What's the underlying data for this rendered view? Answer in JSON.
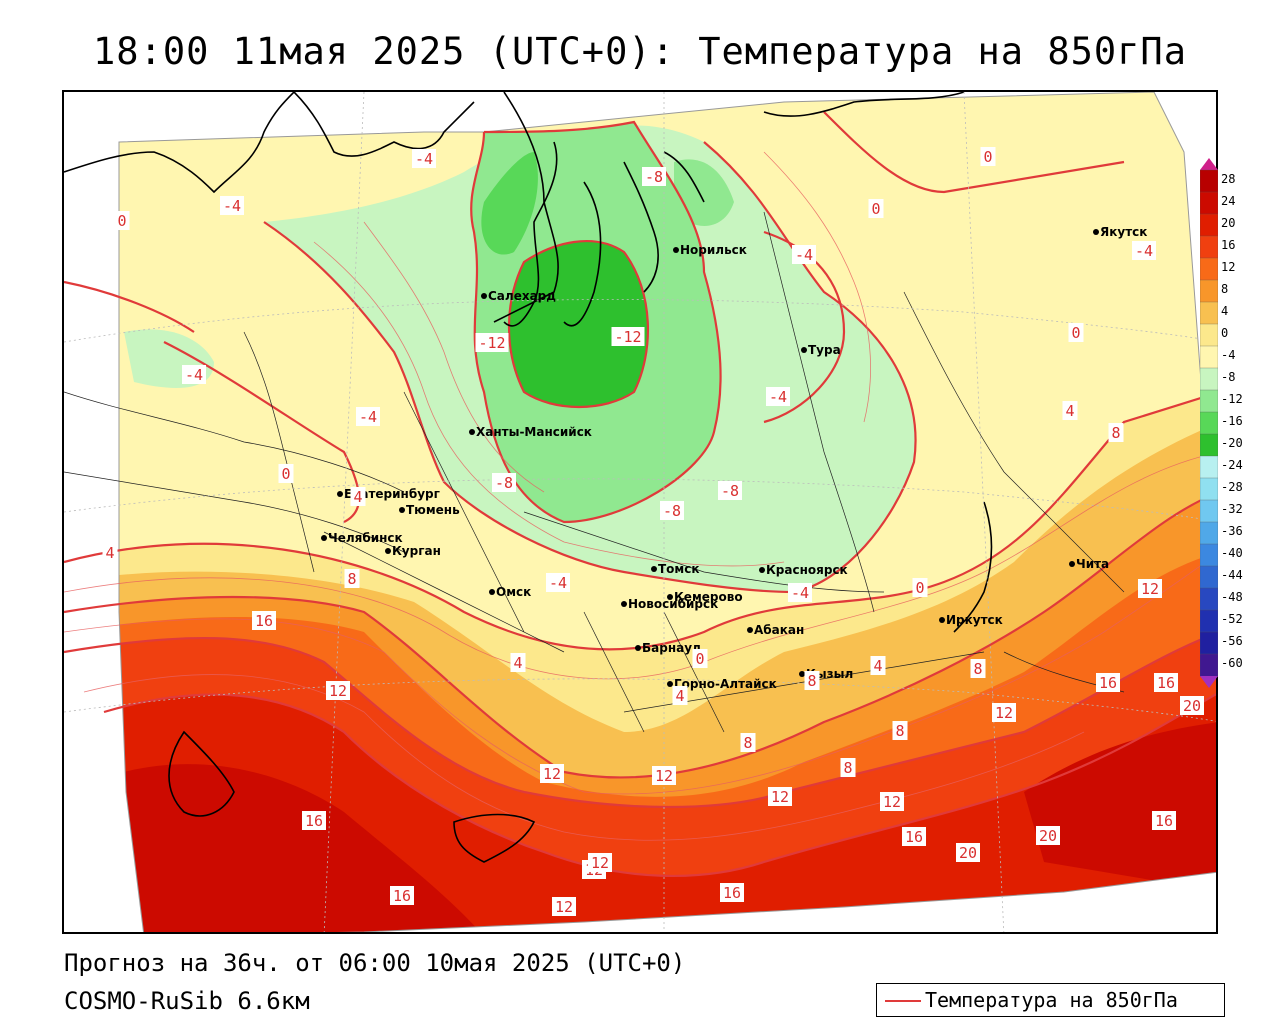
{
  "header": {
    "title": "18:00 11мая 2025 (UTC+0): Температура на 850гПа"
  },
  "footer": {
    "forecast": "Прогноз на 36ч. от 06:00 10мая 2025 (UTC+0)",
    "model": "COSMO-RuSib 6.6км"
  },
  "legend": {
    "label": "Температура на 850гПа",
    "line_color": "#e03a3a"
  },
  "colorbar": {
    "ticks": [
      "28",
      "24",
      "20",
      "16",
      "12",
      "8",
      "4",
      "0",
      "-4",
      "-8",
      "-12",
      "-16",
      "-20",
      "-24",
      "-28",
      "-32",
      "-36",
      "-40",
      "-44",
      "-48",
      "-52",
      "-56",
      "-60"
    ],
    "colors": [
      "#b80000",
      "#cc0a00",
      "#e01e00",
      "#f04010",
      "#f86a18",
      "#f8962a",
      "#f8c050",
      "#fce88c",
      "#fff6b0",
      "#c8f5c0",
      "#90e890",
      "#58d858",
      "#2ec02e",
      "#b8f0f0",
      "#90e0f0",
      "#70c8f0",
      "#50a8e8",
      "#3c88e0",
      "#3068d0",
      "#2848c0",
      "#2030b0",
      "#2020a0",
      "#401890"
    ],
    "top_color": "#d0208a",
    "bottom_color": "#a030c0"
  },
  "cities": [
    {
      "name": "Якутск"
    },
    {
      "name": "Норильск"
    },
    {
      "name": "Салехард"
    },
    {
      "name": "Тура"
    },
    {
      "name": "Ханты-Мансийск"
    },
    {
      "name": "Екатеринбург"
    },
    {
      "name": "Тюмень"
    },
    {
      "name": "Челябинск"
    },
    {
      "name": "Курган"
    },
    {
      "name": "Омск"
    },
    {
      "name": "Новосибирск"
    },
    {
      "name": "Томск"
    },
    {
      "name": "Кемерово"
    },
    {
      "name": "Красноярск"
    },
    {
      "name": "Абакан"
    },
    {
      "name": "Иркутск"
    },
    {
      "name": "Чита"
    },
    {
      "name": "Барнаул"
    },
    {
      "name": "Горно-Алтайск"
    },
    {
      "name": "Кызыл"
    }
  ],
  "contour_labels": [
    {
      "text": "-4"
    },
    {
      "text": "-4"
    },
    {
      "text": "0"
    },
    {
      "text": "-8"
    },
    {
      "text": "0"
    },
    {
      "text": "0"
    },
    {
      "text": "-4"
    },
    {
      "text": "-4"
    },
    {
      "text": "-12"
    },
    {
      "text": "-12"
    },
    {
      "text": "0"
    },
    {
      "text": "-4"
    },
    {
      "text": "-4"
    },
    {
      "text": "-4"
    },
    {
      "text": "4"
    },
    {
      "text": "8"
    },
    {
      "text": "0"
    },
    {
      "text": "-8"
    },
    {
      "text": "-8"
    },
    {
      "text": "-8"
    },
    {
      "text": "4"
    },
    {
      "text": "4"
    },
    {
      "text": "8"
    },
    {
      "text": "-4"
    },
    {
      "text": "-4"
    },
    {
      "text": "0"
    },
    {
      "text": "12"
    },
    {
      "text": "16"
    },
    {
      "text": "12"
    },
    {
      "text": "4"
    },
    {
      "text": "0"
    },
    {
      "text": "4"
    },
    {
      "text": "4"
    },
    {
      "text": "8"
    },
    {
      "text": "8"
    },
    {
      "text": "16"
    },
    {
      "text": "16"
    },
    {
      "text": "12"
    },
    {
      "text": "20"
    },
    {
      "text": "8"
    },
    {
      "text": "8"
    },
    {
      "text": "8"
    },
    {
      "text": "12"
    },
    {
      "text": "12"
    },
    {
      "text": "12"
    },
    {
      "text": "12"
    },
    {
      "text": "16"
    },
    {
      "text": "20"
    },
    {
      "text": "20"
    },
    {
      "text": "16"
    },
    {
      "text": "16"
    },
    {
      "text": "12"
    },
    {
      "text": "16"
    },
    {
      "text": "12"
    },
    {
      "text": "16"
    },
    {
      "text": "12"
    }
  ]
}
